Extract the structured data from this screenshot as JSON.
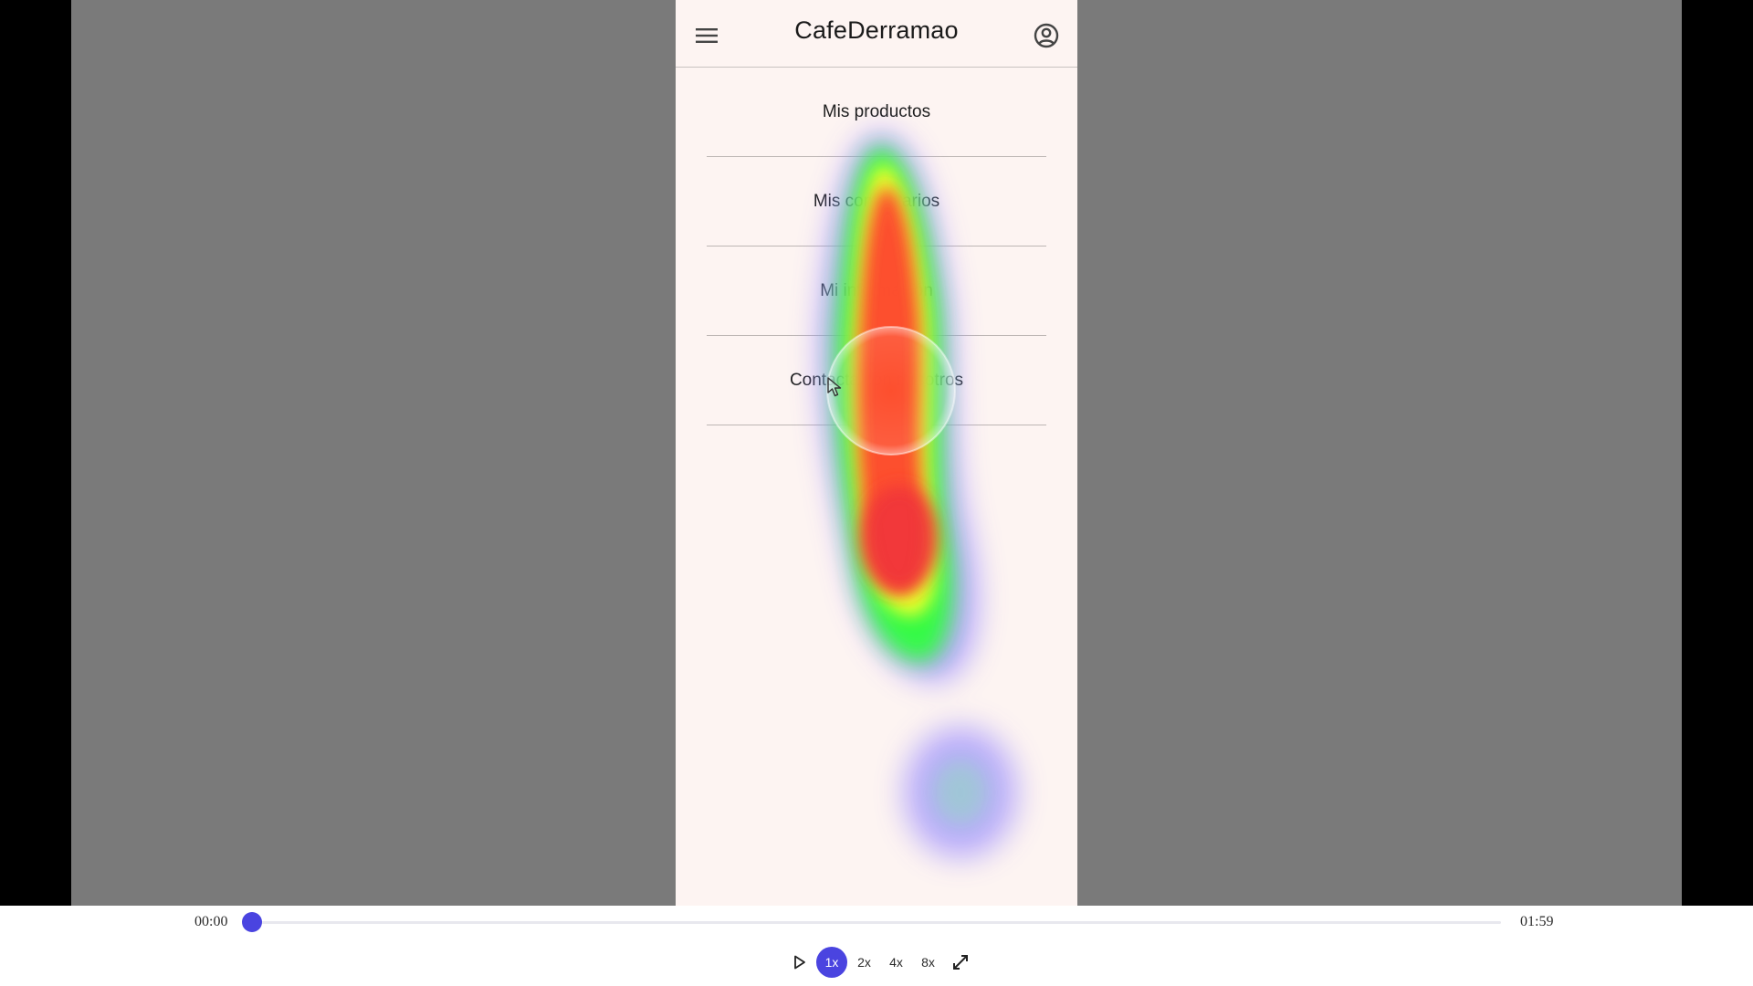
{
  "app": {
    "title": "CafeDerramao",
    "menu_items": [
      {
        "label": "Mis productos"
      },
      {
        "label": "Mis comentarios"
      },
      {
        "label": "Mi información"
      },
      {
        "label": "Contacta con nosotros"
      }
    ],
    "icons": {
      "menu": "hamburger-menu-icon",
      "account": "account-circle-icon",
      "cursor": "mouse-pointer-icon"
    },
    "colors": {
      "phone_background": "#fdf4f2",
      "heat_high": "#ff3b2f",
      "heat_mid": "#f0ff2a",
      "heat_low": "#2aff3a",
      "heat_edge": "#9a8cff"
    }
  },
  "player": {
    "current_time": "00:00",
    "total_time": "01:59",
    "progress": 0,
    "speeds": [
      "1x",
      "2x",
      "4x",
      "8x"
    ],
    "active_speed": "1x",
    "icons": {
      "play": "play-icon",
      "fullscreen": "fullscreen-icon"
    },
    "accent": "#4a44e0"
  }
}
